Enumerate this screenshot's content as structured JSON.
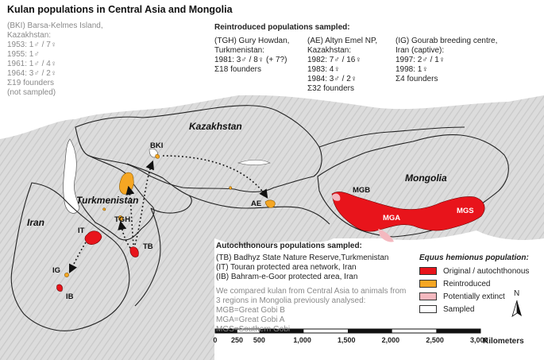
{
  "title": "Kulan populations in Central Asia and Mongolia",
  "bki_box": {
    "lines": [
      "(BKI) Barsa-Kelmes Island,",
      "Kazakhstan:",
      "1953: 1♂ / 7♀",
      "1955: 1♂",
      "1961: 1♂ / 4♀",
      "1964: 3♂ / 2♀",
      "Σ19 founders",
      "(not sampled)"
    ]
  },
  "reintroduced": {
    "heading": "Reintroduced populations sampled:",
    "tgh": [
      "(TGH) Gury Howdan,",
      "Turkmenistan:",
      "1981: 3♂ / 8♀ (+ 7?)",
      "Σ18 founders"
    ],
    "ae": [
      "(AE) Altyn Emel NP,",
      "Kazakhstan:",
      "1982: 7♂ / 16♀",
      "1983: 4♀",
      "1984: 3♂ / 2♀",
      "Σ32 founders"
    ],
    "ig": [
      "(IG) Gourab breeding centre,",
      "Iran (captive):",
      "1997: 2♂ / 1♀",
      "1998: 1♀",
      "Σ4 founders"
    ]
  },
  "autochthonous": {
    "heading": "Autochthonours populations sampled:",
    "lines": [
      "(TB) Badhyz State Nature Reserve,Turkmenistan",
      "(IT) Touran protected area network, Iran",
      "(IB) Bahram-e-Goor protected area, Iran"
    ]
  },
  "mongolia_note": {
    "lines": [
      "We compared kulan from Central Asia to animals from",
      "3 regions in Mongolia previously analysed:",
      "MGB=Great Gobi B",
      "MGA=Great Gobi A",
      "MGS=Southern Gobi"
    ]
  },
  "legend": {
    "title": "Equus hemionus population:",
    "items": [
      {
        "label": "Original / autochthonous",
        "color": "#e8141b"
      },
      {
        "label": "Reintroduced",
        "color": "#f5a623"
      },
      {
        "label": "Potentially extinct",
        "color": "#f4b8bf"
      },
      {
        "label": "Sampled",
        "color": "#ffffff"
      }
    ]
  },
  "regions": {
    "kazakhstan": "Kazakhstan",
    "mongolia": "Mongolia",
    "turkmenistan": "Turkmenistan",
    "iran": "Iran"
  },
  "populations": {
    "bki": "BKI",
    "ae": "AE",
    "tgh": "TGH",
    "tb": "TB",
    "it": "IT",
    "ig": "IG",
    "ib": "IB",
    "mgb": "MGB",
    "mga": "MGA",
    "mgs": "MGS"
  },
  "north_arrow": {
    "label": "N"
  },
  "scale_bar": {
    "ticks": [
      "0",
      "250",
      "500",
      "1,000",
      "1,500",
      "2,000",
      "2,500",
      "3,000"
    ],
    "tick_values": [
      0,
      250,
      500,
      1000,
      1500,
      2000,
      2500,
      3000
    ],
    "unit": "Kilometers"
  },
  "colors": {
    "original": "#e8141b",
    "reintroduced": "#f5a623",
    "extinct": "#f4b8bf",
    "terrain": "#d9d9d9",
    "border": "#222222"
  }
}
